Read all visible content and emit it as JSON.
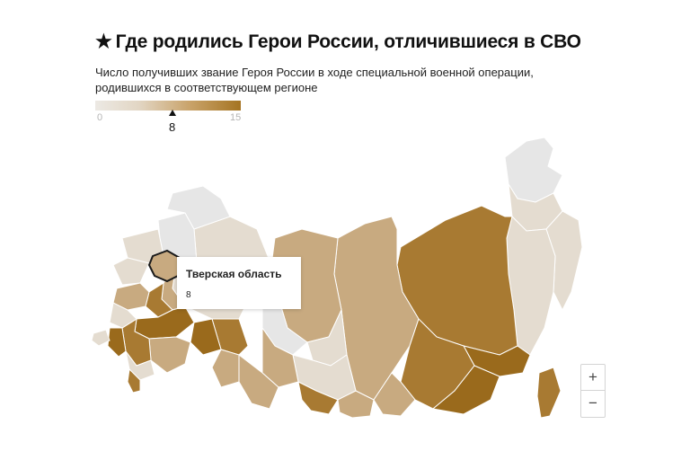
{
  "header": {
    "star": "★",
    "title": "Где родились Герои России, отличившиеся в СВО",
    "subtitle": "Число получивших звание Героя России в ходе специальной военной операции, родившихся в соответствующем регионе"
  },
  "legend": {
    "min": "0",
    "max": "15",
    "selected_value": "8",
    "selected_fraction": 0.533,
    "colors": [
      "#ece9e4",
      "#e2d6c4",
      "#c9a36a",
      "#a57422"
    ]
  },
  "tooltip": {
    "region": "Тверская область",
    "value": "8"
  },
  "zoom": {
    "in_label": "+",
    "out_label": "−"
  },
  "map_colors": {
    "none": "#e6e6e6",
    "low": "#e4dcd0",
    "mid": "#c8aa80",
    "high": "#a87a32",
    "top": "#9a6a1c"
  }
}
